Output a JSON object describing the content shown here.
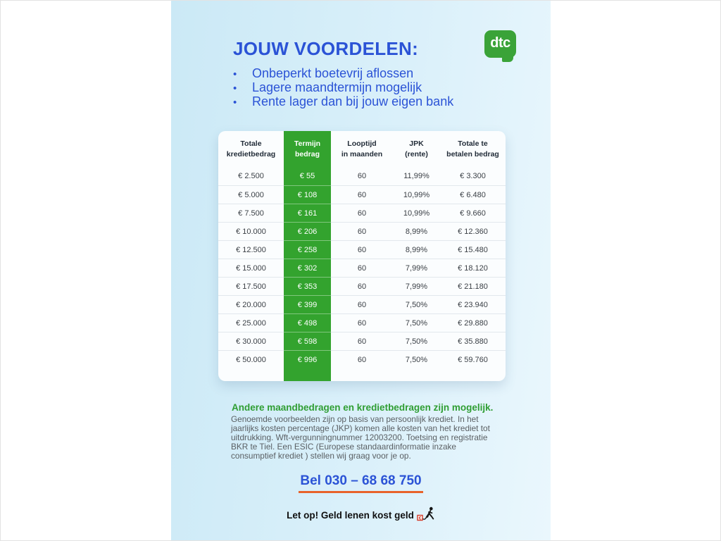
{
  "colors": {
    "accent_blue": "#2b53d6",
    "brand_green": "#33a32e",
    "underline_orange": "#e8632b",
    "band_blue_left": "#cbe9f6",
    "band_blue_right": "#eaf7fd"
  },
  "header": {
    "title": "JOUW VOORDELEN:",
    "logo_text": "dtc"
  },
  "benefits": {
    "items": [
      "Onbeperkt boetevrij aflossen",
      "Lagere maandtermijn mogelijk",
      "Rente lager dan bij jouw eigen bank"
    ]
  },
  "table": {
    "headers": [
      {
        "line1": "Totale",
        "line2": "kredietbedrag"
      },
      {
        "line1": "Termijn",
        "line2": "bedrag"
      },
      {
        "line1": "Looptijd",
        "line2": "in maanden"
      },
      {
        "line1": "JPK",
        "line2": "(rente)"
      },
      {
        "line1": "Totale te",
        "line2": "betalen bedrag"
      }
    ],
    "rows": [
      [
        "€ 2.500",
        "€ 55",
        "60",
        "11,99%",
        "€ 3.300"
      ],
      [
        "€ 5.000",
        "€ 108",
        "60",
        "10,99%",
        "€ 6.480"
      ],
      [
        "€ 7.500",
        "€ 161",
        "60",
        "10,99%",
        "€ 9.660"
      ],
      [
        "€ 10.000",
        "€ 206",
        "60",
        "8,99%",
        "€ 12.360"
      ],
      [
        "€ 12.500",
        "€ 258",
        "60",
        "8,99%",
        "€ 15.480"
      ],
      [
        "€ 15.000",
        "€ 302",
        "60",
        "7,99%",
        "€ 18.120"
      ],
      [
        "€ 17.500",
        "€ 353",
        "60",
        "7,99%",
        "€ 21.180"
      ],
      [
        "€ 20.000",
        "€ 399",
        "60",
        "7,50%",
        "€ 23.940"
      ],
      [
        "€ 25.000",
        "€ 498",
        "60",
        "7,50%",
        "€ 29.880"
      ],
      [
        "€ 30.000",
        "€ 598",
        "60",
        "7,50%",
        "€ 35.880"
      ],
      [
        "€ 50.000",
        "€ 996",
        "60",
        "7,50%",
        "€ 59.760"
      ]
    ]
  },
  "footer": {
    "subheading": "Andere maandbedragen en kredietbedragen zijn mogelijk.",
    "disclaimer": "Genoemde voorbeelden zijn op basis van persoonlijk krediet. In het jaarlijks kosten percentage (JKP) komen alle kosten van het krediet tot uitdrukking. Wft-vergunningnummer 12003200. Toetsing en registratie BKR te Tiel. Een ESIC (Europese standaardinformatie inzake consumptief krediet ) stellen wij graag voor je op.",
    "phone": "Bel 030 – 68 68 750",
    "warning": "Let op! Geld lenen kost geld"
  }
}
